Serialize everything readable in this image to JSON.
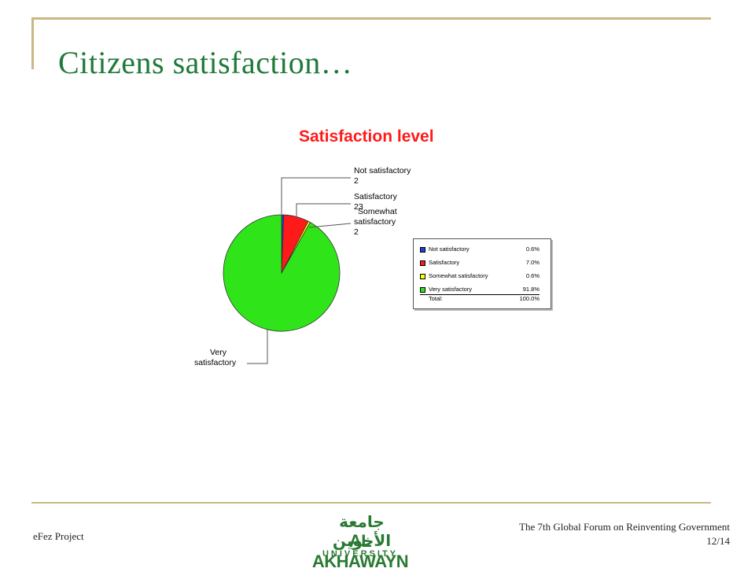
{
  "slide": {
    "title": "Citizens satisfaction…",
    "footer_left": "eFez Project",
    "footer_right_line1": "The 7th Global Forum on Reinventing Government",
    "footer_right_line2": "12/14"
  },
  "logo": {
    "arabic_text": "جامعة الأخوين",
    "name": "AL AKHAWAYN",
    "subtitle": "UNIVERSITY"
  },
  "colors": {
    "frame": "#c9b784",
    "title": "#1f7a3a",
    "chart_title": "#ff1a1a"
  },
  "chart_data": {
    "type": "pie",
    "title": "Satisfaction level",
    "slices": [
      {
        "label": "Not satisfactory",
        "callout_line1": "Not satisfactory",
        "callout_line2": "2",
        "value": 0.6,
        "color": "#1f3fd6"
      },
      {
        "label": "Satisfactory",
        "callout_line1": "Satisfactory",
        "callout_line2": "23",
        "value": 7.0,
        "color": "#ff1a1a"
      },
      {
        "label": "Somewhat satisfactory",
        "callout_line1": "Somewhat",
        "callout_line2": "satisfactory",
        "callout_line3": "2",
        "value": 0.6,
        "color": "#ffff00"
      },
      {
        "label": "Very satisfactory",
        "callout_line1": "Very",
        "callout_line2": "satisfactory",
        "value": 91.8,
        "color": "#2fe51a"
      }
    ],
    "legend": {
      "rows": [
        {
          "label": "Not satisfactory",
          "pct": "0.6%",
          "color": "#1f3fd6"
        },
        {
          "label": "Satisfactory",
          "pct": "7.0%",
          "color": "#ff1a1a"
        },
        {
          "label": "Somewhat satisfactory",
          "pct": "0.6%",
          "color": "#ffff00"
        },
        {
          "label": "Very satisfactory",
          "pct": "91.8%",
          "color": "#2fe51a"
        }
      ],
      "total_label": "Total:",
      "total_pct": "100.0%"
    }
  }
}
